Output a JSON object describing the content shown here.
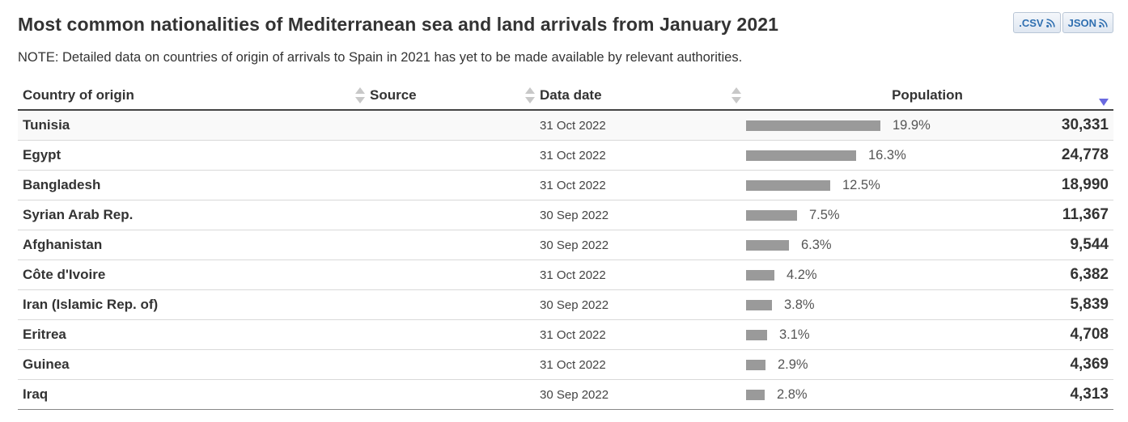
{
  "page": {
    "title": "Most common nationalities of Mediterranean sea and land arrivals from January 2021",
    "note": "NOTE: Detailed data on countries of origin of arrivals to Spain in 2021 has yet to be made available by relevant authorities."
  },
  "downloads": {
    "csv_label": ".CSV",
    "json_label": "JSON",
    "icon": "rss-feed-icon"
  },
  "table": {
    "headers": {
      "country": "Country of origin",
      "source": "Source",
      "date": "Data date",
      "population": "Population"
    },
    "sort": {
      "column": "population",
      "direction": "descending"
    },
    "bar_color": "#9a9a9a",
    "rows": [
      {
        "country": "Tunisia",
        "source": "",
        "date": "31 Oct 2022",
        "percent": "19.9%",
        "share": 19.9,
        "value": "30,331"
      },
      {
        "country": "Egypt",
        "source": "",
        "date": "31 Oct 2022",
        "percent": "16.3%",
        "share": 16.3,
        "value": "24,778"
      },
      {
        "country": "Bangladesh",
        "source": "",
        "date": "31 Oct 2022",
        "percent": "12.5%",
        "share": 12.5,
        "value": "18,990"
      },
      {
        "country": "Syrian Arab Rep.",
        "source": "",
        "date": "30 Sep 2022",
        "percent": "7.5%",
        "share": 7.5,
        "value": "11,367"
      },
      {
        "country": "Afghanistan",
        "source": "",
        "date": "30 Sep 2022",
        "percent": "6.3%",
        "share": 6.3,
        "value": "9,544"
      },
      {
        "country": "Côte d'Ivoire",
        "source": "",
        "date": "31 Oct 2022",
        "percent": "4.2%",
        "share": 4.2,
        "value": "6,382"
      },
      {
        "country": "Iran (Islamic Rep. of)",
        "source": "",
        "date": "30 Sep 2022",
        "percent": "3.8%",
        "share": 3.8,
        "value": "5,839"
      },
      {
        "country": "Eritrea",
        "source": "",
        "date": "31 Oct 2022",
        "percent": "3.1%",
        "share": 3.1,
        "value": "4,708"
      },
      {
        "country": "Guinea",
        "source": "",
        "date": "31 Oct 2022",
        "percent": "2.9%",
        "share": 2.9,
        "value": "4,369"
      },
      {
        "country": "Iraq",
        "source": "",
        "date": "30 Sep 2022",
        "percent": "2.8%",
        "share": 2.8,
        "value": "4,313"
      }
    ]
  }
}
